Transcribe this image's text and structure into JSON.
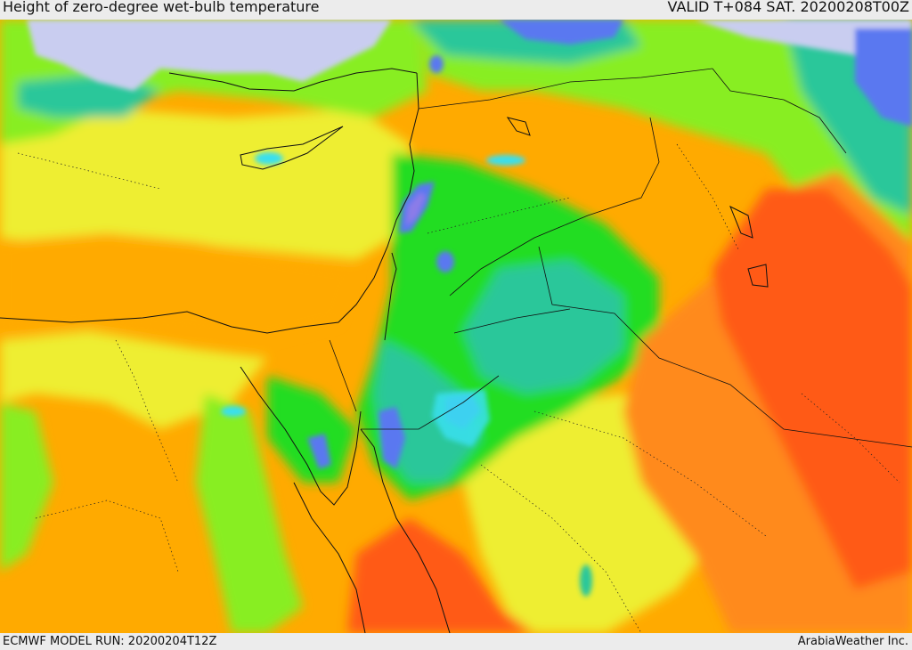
{
  "header": {
    "title": "Height of zero-degree wet-bulb temperature",
    "valid": "VALID T+084 SAT. 20200208T00Z"
  },
  "footer": {
    "model_run": "ECMWF MODEL RUN: 20200204T12Z",
    "credit": "ArabiaWeather Inc."
  },
  "colors": {
    "sea": "#c9cdf0",
    "low_purple": "#8c7ce8",
    "blue": "#5a78f0",
    "cyan": "#38e0f0",
    "teal": "#2cc79a",
    "green": "#22dd22",
    "light_green": "#88ee22",
    "yellow_green": "#ccee22",
    "yellow": "#eeee33",
    "gold": "#ffcc00",
    "orange": "#ffaa00",
    "dark_orange": "#ff8a1a",
    "red_orange": "#ff5a14"
  }
}
